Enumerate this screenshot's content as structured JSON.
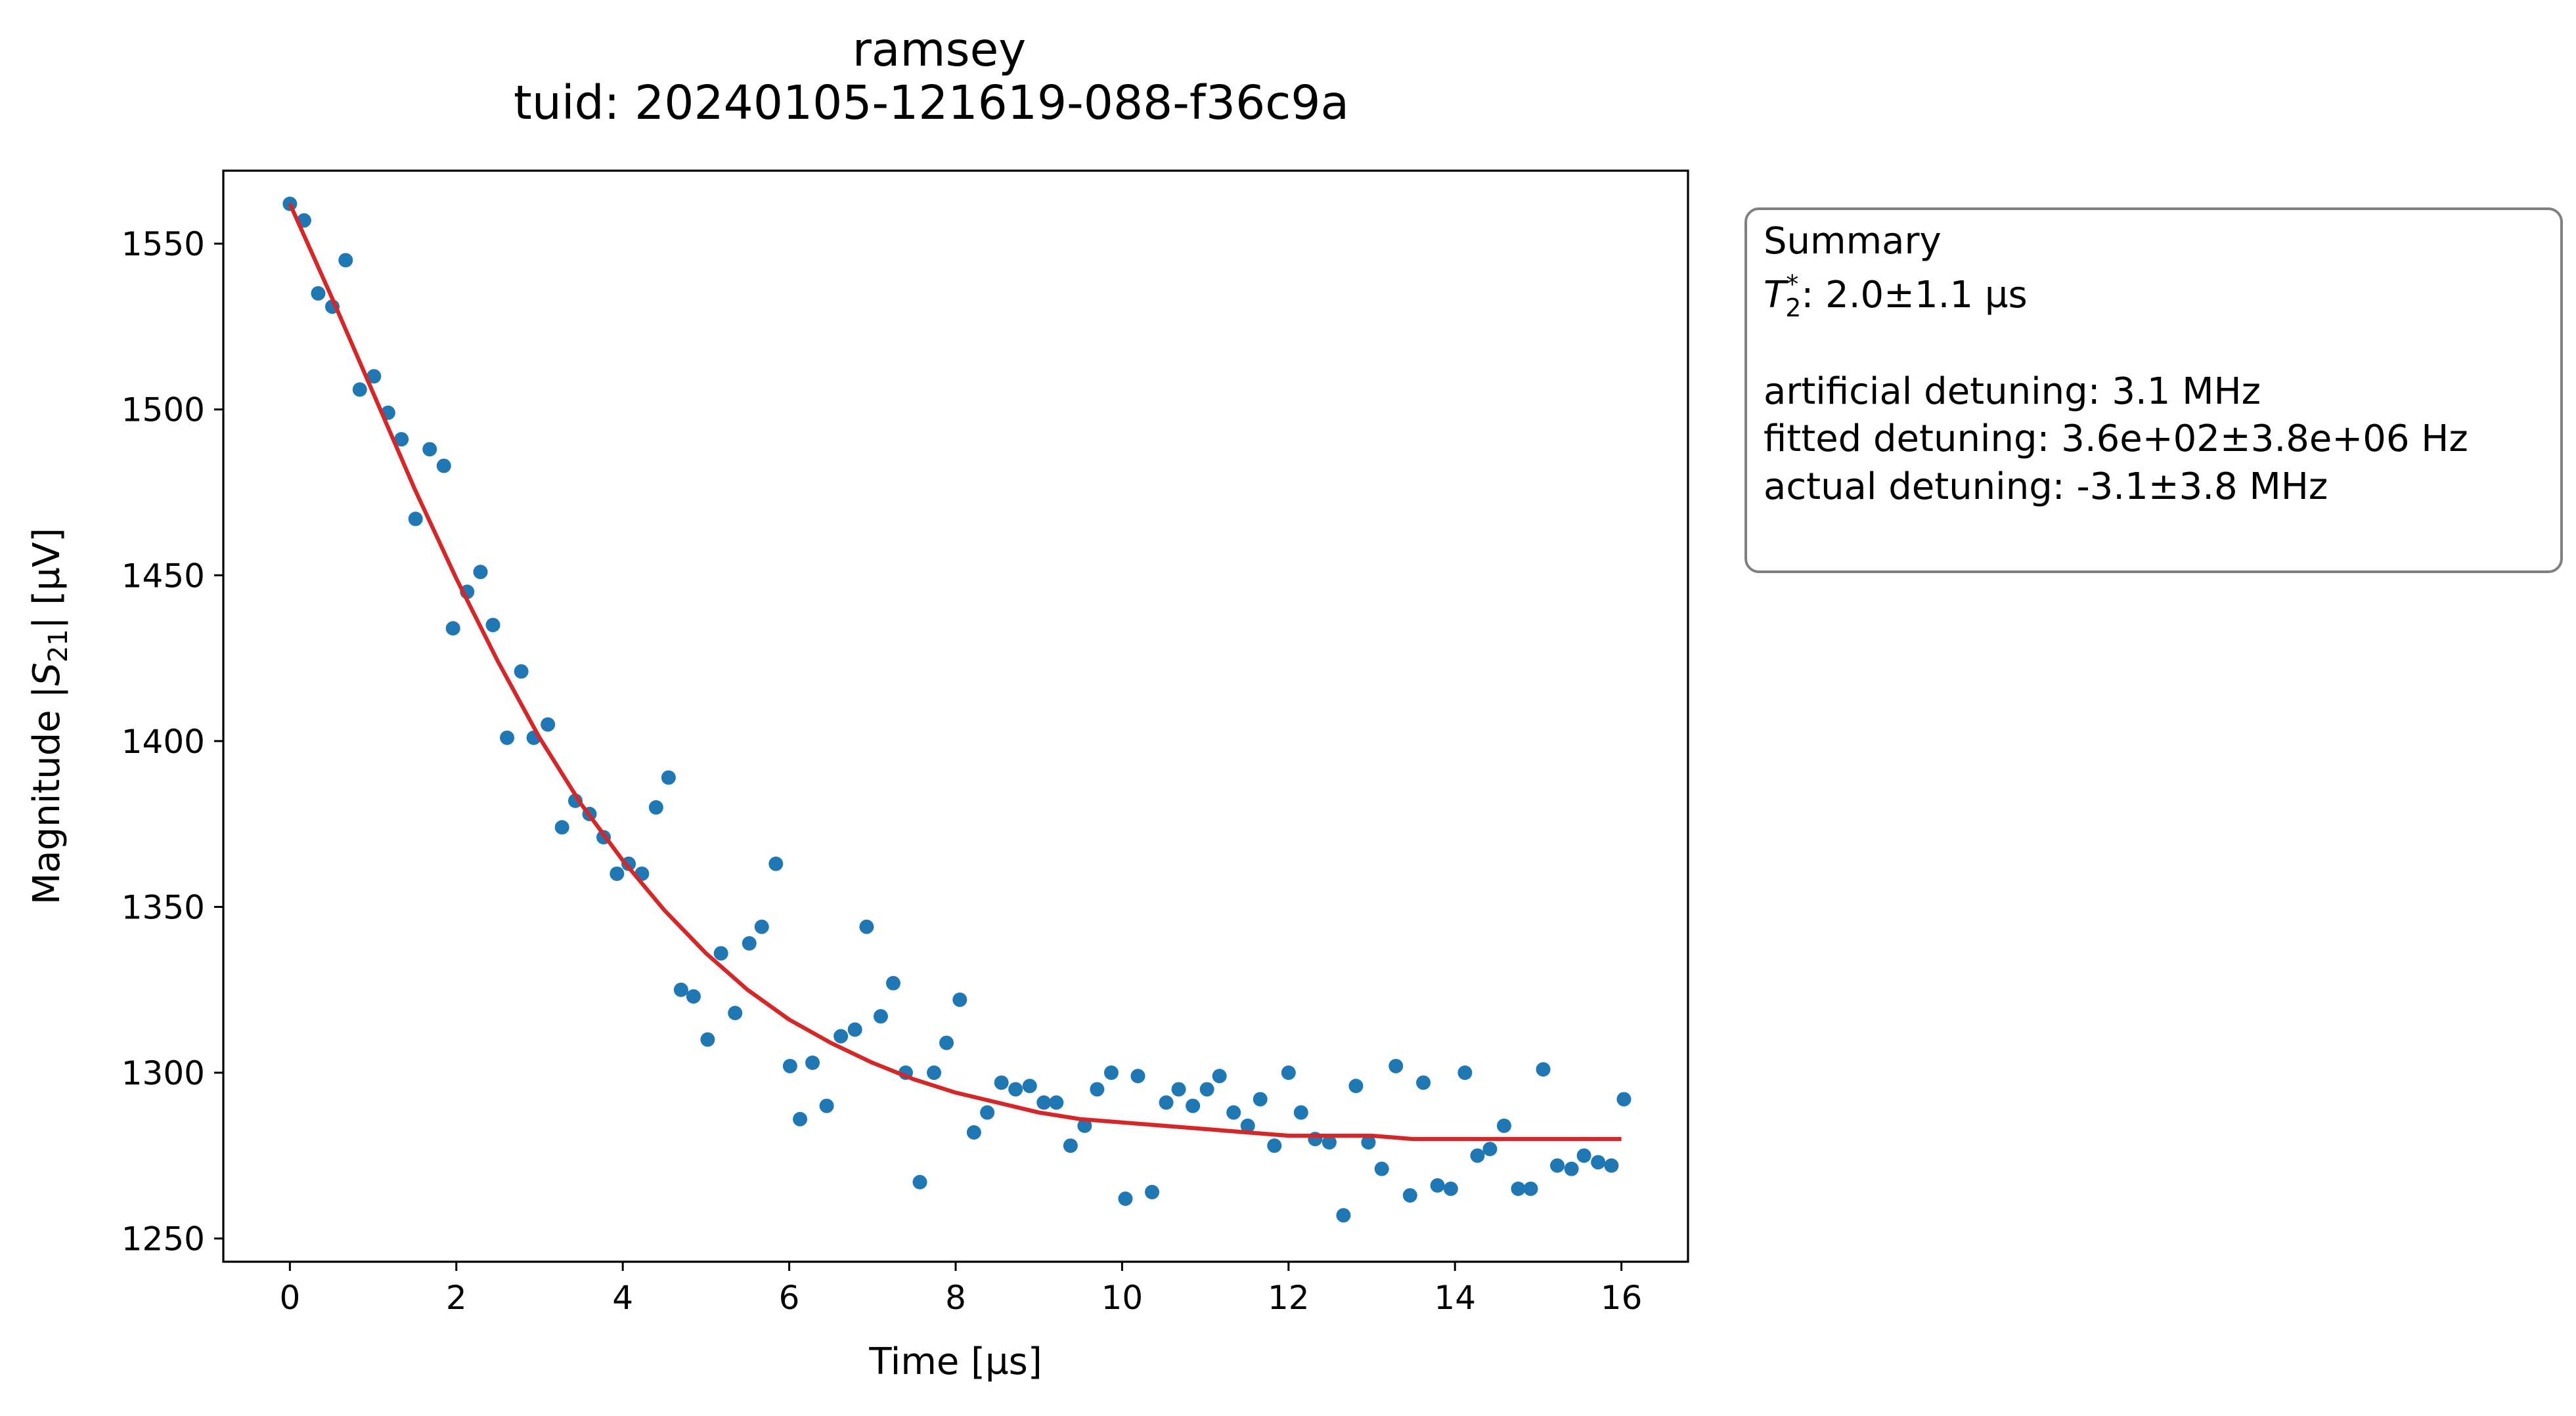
{
  "chart_data": {
    "type": "scatter",
    "title": "ramsey",
    "subtitle": "tuid: 20240105-121619-088-f36c9a",
    "xlabel": "Time [µs]",
    "ylabel_prefix": "Magnitude |",
    "ylabel_var": "S",
    "ylabel_sub": "21",
    "ylabel_suffix": "| [µV]",
    "xlim": [
      -0.8,
      16.8
    ],
    "ylim": [
      1243,
      1572
    ],
    "xticks": [
      0,
      2,
      4,
      6,
      8,
      10,
      12,
      14,
      16
    ],
    "xtick_labels": [
      "0",
      "2",
      "4",
      "6",
      "8",
      "10",
      "12",
      "14",
      "16"
    ],
    "yticks": [
      1250,
      1300,
      1350,
      1400,
      1450,
      1500,
      1550
    ],
    "ytick_labels": [
      "1250",
      "1300",
      "1350",
      "1400",
      "1450",
      "1500",
      "1550"
    ],
    "grid": false,
    "series": [
      {
        "kind": "points",
        "color": "#1f77b4",
        "x": [
          0.0,
          0.17,
          0.34,
          0.51,
          0.67,
          0.84,
          1.01,
          1.18,
          1.34,
          1.51,
          1.68,
          1.85,
          1.96,
          2.13,
          2.29,
          2.44,
          2.61,
          2.78,
          2.93,
          3.1,
          3.27,
          3.43,
          3.6,
          3.77,
          3.93,
          4.07,
          4.23,
          4.4,
          4.55,
          4.7,
          4.85,
          5.02,
          5.18,
          5.35,
          5.52,
          5.67,
          5.84,
          6.01,
          6.13,
          6.28,
          6.45,
          6.62,
          6.79,
          6.93,
          7.1,
          7.25,
          7.4,
          7.57,
          7.74,
          7.89,
          8.05,
          8.22,
          8.38,
          8.55,
          8.72,
          8.89,
          9.06,
          9.21,
          9.38,
          9.55,
          9.7,
          9.87,
          10.04,
          10.19,
          10.36,
          10.53,
          10.68,
          10.85,
          11.02,
          11.17,
          11.34,
          11.51,
          11.66,
          11.83,
          12.0,
          12.15,
          12.32,
          12.49,
          12.66,
          12.81,
          12.96,
          13.12,
          13.29,
          13.46,
          13.62,
          13.79,
          13.95,
          14.12,
          14.27,
          14.42,
          14.59,
          14.76,
          14.91,
          15.06,
          15.23,
          15.4,
          15.55,
          15.72,
          15.88,
          16.03
        ],
        "y": [
          1562,
          1557,
          1535,
          1531,
          1545,
          1506,
          1510,
          1499,
          1491,
          1467,
          1488,
          1483,
          1434,
          1445,
          1451,
          1435,
          1401,
          1421,
          1401,
          1405,
          1374,
          1382,
          1378,
          1371,
          1360,
          1363,
          1360,
          1380,
          1389,
          1325,
          1323,
          1310,
          1336,
          1318,
          1339,
          1344,
          1363,
          1302,
          1286,
          1303,
          1290,
          1311,
          1313,
          1344,
          1317,
          1327,
          1300,
          1267,
          1300,
          1309,
          1322,
          1282,
          1288,
          1297,
          1295,
          1296,
          1291,
          1291,
          1278,
          1284,
          1295,
          1300,
          1262,
          1299,
          1264,
          1291,
          1295,
          1290,
          1295,
          1299,
          1288,
          1284,
          1292,
          1278,
          1300,
          1288,
          1280,
          1279,
          1257,
          1296,
          1279,
          1271,
          1302,
          1263,
          1297,
          1266,
          1265,
          1300,
          1275,
          1277,
          1284,
          1265,
          1265,
          1301,
          1272,
          1271,
          1275,
          1273,
          1272,
          1292
        ]
      },
      {
        "kind": "fit-curve",
        "color": "#d62728",
        "x": [
          0.0,
          0.5,
          1.0,
          1.5,
          2.0,
          2.5,
          3.0,
          3.5,
          4.0,
          4.5,
          5.0,
          5.5,
          6.0,
          6.5,
          7.0,
          7.5,
          8.0,
          8.5,
          9.0,
          9.5,
          10.0,
          10.5,
          11.0,
          11.5,
          12.0,
          12.5,
          13.0,
          13.5,
          14.0,
          14.5,
          15.0,
          15.5,
          16.0
        ],
        "y": [
          1562,
          1534,
          1505,
          1476,
          1449,
          1424,
          1401,
          1381,
          1364,
          1349,
          1336,
          1325,
          1316,
          1309,
          1303,
          1298,
          1294,
          1291,
          1288,
          1286,
          1285,
          1284,
          1283,
          1282,
          1281,
          1281,
          1281,
          1280,
          1280,
          1280,
          1280,
          1280,
          1280
        ]
      }
    ]
  },
  "summary": {
    "heading": "Summary",
    "t2_symbol": "T",
    "t2_sub": "2",
    "t2_sup": "*",
    "t2_value": ": 2.0±1.1 µs",
    "artificial_detuning": "artificial detuning: 3.1 MHz",
    "fitted_detuning": "fitted detuning: 3.6e+02±3.8e+06 Hz",
    "actual_detuning": "actual detuning: -3.1±3.8 MHz"
  }
}
